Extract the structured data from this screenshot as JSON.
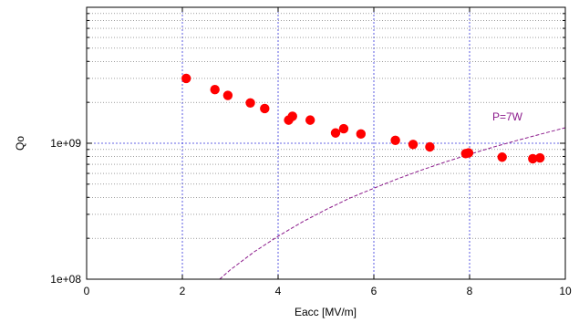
{
  "chart_data": {
    "type": "scatter",
    "xlabel": "Eacc [MV/m]",
    "ylabel": "Qo",
    "xlim": [
      0,
      10
    ],
    "ylim": [
      100000000,
      10000000000
    ],
    "y_scale": "log",
    "grid": true,
    "x_ticks": [
      0,
      2,
      4,
      6,
      8,
      10
    ],
    "x_tick_labels": [
      "0",
      "2",
      "4",
      "6",
      "8",
      "10"
    ],
    "y_tick_labels": [
      {
        "value": 100000000,
        "label": "1e+08"
      },
      {
        "value": 1000000000,
        "label": "1e+09"
      }
    ],
    "series": [
      {
        "marker_color": "#ff0000",
        "points": [
          {
            "x": 2.08,
            "y": 3000000000
          },
          {
            "x": 2.68,
            "y": 2480000000
          },
          {
            "x": 2.95,
            "y": 2250000000
          },
          {
            "x": 3.42,
            "y": 1980000000
          },
          {
            "x": 3.72,
            "y": 1800000000
          },
          {
            "x": 4.22,
            "y": 1480000000
          },
          {
            "x": 4.3,
            "y": 1580000000
          },
          {
            "x": 4.67,
            "y": 1480000000
          },
          {
            "x": 5.2,
            "y": 1190000000
          },
          {
            "x": 5.37,
            "y": 1280000000
          },
          {
            "x": 5.73,
            "y": 1170000000
          },
          {
            "x": 6.45,
            "y": 1050000000
          },
          {
            "x": 6.82,
            "y": 980000000
          },
          {
            "x": 7.17,
            "y": 940000000
          },
          {
            "x": 7.92,
            "y": 840000000
          },
          {
            "x": 7.98,
            "y": 850000000
          },
          {
            "x": 8.68,
            "y": 790000000
          },
          {
            "x": 9.32,
            "y": 770000000
          },
          {
            "x": 9.47,
            "y": 780000000
          }
        ]
      }
    ],
    "reference_curve": {
      "label": "P=7W",
      "color": "#8b1a8b",
      "style": "dashed",
      "points": [
        {
          "x": 2.78,
          "y": 100000000
        },
        {
          "x": 3.0,
          "y": 117000000
        },
        {
          "x": 3.5,
          "y": 159000000
        },
        {
          "x": 4.0,
          "y": 207000000
        },
        {
          "x": 4.5,
          "y": 263000000
        },
        {
          "x": 5.0,
          "y": 325000000
        },
        {
          "x": 5.5,
          "y": 395000000
        },
        {
          "x": 6.0,
          "y": 467000000
        },
        {
          "x": 6.5,
          "y": 548000000
        },
        {
          "x": 7.0,
          "y": 636000000
        },
        {
          "x": 7.5,
          "y": 730000000
        },
        {
          "x": 8.0,
          "y": 830000000
        },
        {
          "x": 8.5,
          "y": 938000000
        },
        {
          "x": 9.0,
          "y": 1050000000
        },
        {
          "x": 9.5,
          "y": 1170000000
        },
        {
          "x": 10.0,
          "y": 1300000000
        }
      ]
    },
    "colors": {
      "major_grid": "#3333dd",
      "minor_grid": "#666666",
      "axis": "#000000"
    }
  }
}
